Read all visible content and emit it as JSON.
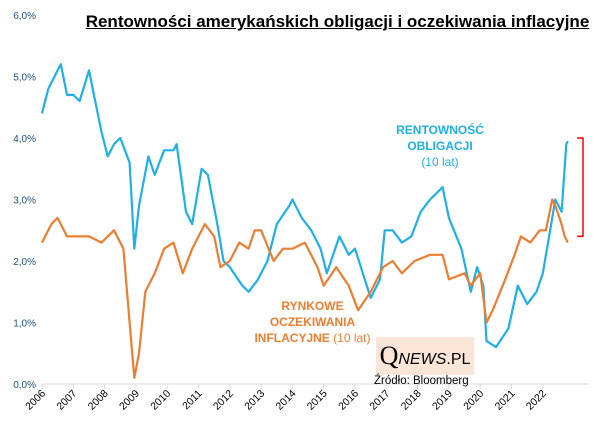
{
  "chart_data": {
    "type": "line",
    "title": "Rentowności amerykańskich obligacji i oczekiwania inflacyjne",
    "xlabel": "",
    "ylabel": "",
    "xlim": [
      2006,
      2023
    ],
    "ylim": [
      0,
      6
    ],
    "y_ticks": [
      "0,0%",
      "1,0%",
      "2,0%",
      "3,0%",
      "4,0%",
      "5,0%",
      "6,0%"
    ],
    "x_ticks": [
      "2006",
      "2007",
      "2008",
      "2009",
      "2010",
      "2011",
      "2012",
      "2013",
      "2014",
      "2015",
      "2016",
      "2017",
      "2018",
      "2019",
      "2020",
      "2021",
      "2022"
    ],
    "grid": false,
    "series": [
      {
        "name": "yield",
        "label_lines": [
          "RENTOWNOŚĆ",
          "OBLIGACJI"
        ],
        "label_note": "(10 lat)",
        "color": "#1fb0e8",
        "x": [
          2006.0,
          2006.2,
          2006.5,
          2006.6,
          2006.8,
          2007.0,
          2007.2,
          2007.5,
          2007.7,
          2007.9,
          2008.1,
          2008.3,
          2008.5,
          2008.8,
          2008.95,
          2009.1,
          2009.4,
          2009.6,
          2009.9,
          2010.2,
          2010.3,
          2010.6,
          2010.8,
          2011.1,
          2011.3,
          2011.6,
          2011.8,
          2012.0,
          2012.4,
          2012.6,
          2012.9,
          2013.2,
          2013.5,
          2013.9,
          2014.0,
          2014.3,
          2014.6,
          2014.9,
          2015.1,
          2015.5,
          2015.8,
          2016.0,
          2016.5,
          2016.8,
          2016.95,
          2017.2,
          2017.5,
          2017.8,
          2018.1,
          2018.4,
          2018.8,
          2019.0,
          2019.4,
          2019.7,
          2019.9,
          2020.1,
          2020.2,
          2020.5,
          2020.9,
          2021.2,
          2021.5,
          2021.8,
          2022.0,
          2022.2,
          2022.4,
          2022.6,
          2022.75,
          2022.8
        ],
        "y": [
          4.4,
          4.8,
          5.1,
          5.2,
          4.7,
          4.7,
          4.6,
          5.1,
          4.6,
          4.1,
          3.7,
          3.9,
          4.0,
          3.6,
          2.2,
          2.9,
          3.7,
          3.4,
          3.8,
          3.8,
          3.9,
          2.8,
          2.6,
          3.5,
          3.4,
          2.6,
          2.0,
          1.9,
          1.6,
          1.5,
          1.7,
          2.0,
          2.6,
          2.9,
          3.0,
          2.7,
          2.5,
          2.2,
          1.8,
          2.4,
          2.1,
          2.2,
          1.4,
          1.7,
          2.5,
          2.5,
          2.3,
          2.4,
          2.8,
          3.0,
          3.2,
          2.7,
          2.2,
          1.5,
          1.9,
          1.6,
          0.7,
          0.6,
          0.9,
          1.6,
          1.3,
          1.5,
          1.8,
          2.4,
          3.0,
          2.8,
          3.9,
          3.95
        ]
      },
      {
        "name": "breakeven",
        "label_lines": [
          "RYNKOWE",
          "OCZEKIWANIA",
          "INFLACYJNE"
        ],
        "label_note": "(10 lat)",
        "color": "#ed7d31",
        "x": [
          2006.0,
          2006.3,
          2006.5,
          2006.8,
          2007.5,
          2007.9,
          2008.3,
          2008.6,
          2008.8,
          2008.95,
          2009.1,
          2009.3,
          2009.6,
          2009.9,
          2010.2,
          2010.5,
          2010.8,
          2011.2,
          2011.5,
          2011.7,
          2012.0,
          2012.3,
          2012.6,
          2012.8,
          2013.0,
          2013.4,
          2013.7,
          2014.0,
          2014.4,
          2014.8,
          2015.0,
          2015.4,
          2015.8,
          2016.1,
          2016.5,
          2016.9,
          2017.2,
          2017.5,
          2017.9,
          2018.4,
          2018.8,
          2019.0,
          2019.5,
          2019.7,
          2020.0,
          2020.2,
          2020.4,
          2020.8,
          2021.1,
          2021.3,
          2021.6,
          2021.9,
          2022.1,
          2022.3,
          2022.4,
          2022.6,
          2022.7,
          2022.8
        ],
        "y": [
          2.3,
          2.6,
          2.7,
          2.4,
          2.4,
          2.3,
          2.5,
          2.2,
          1.0,
          0.1,
          0.5,
          1.5,
          1.8,
          2.2,
          2.3,
          1.8,
          2.2,
          2.6,
          2.4,
          1.9,
          2.0,
          2.3,
          2.2,
          2.5,
          2.5,
          2.0,
          2.2,
          2.2,
          2.3,
          1.9,
          1.6,
          1.9,
          1.6,
          1.2,
          1.5,
          1.9,
          2.0,
          1.8,
          2.0,
          2.1,
          2.1,
          1.7,
          1.8,
          1.6,
          1.8,
          1.0,
          1.2,
          1.7,
          2.1,
          2.4,
          2.3,
          2.5,
          2.5,
          3.0,
          2.9,
          2.6,
          2.4,
          2.3
        ]
      }
    ],
    "annotations": {
      "bracket_range": [
        2.4,
        4.0
      ],
      "bracket_color": "#ff0000"
    }
  },
  "logo": {
    "q": "Q",
    "news": "NEWS",
    "pl": ".PL"
  },
  "source": "Źródło: Bloomberg"
}
